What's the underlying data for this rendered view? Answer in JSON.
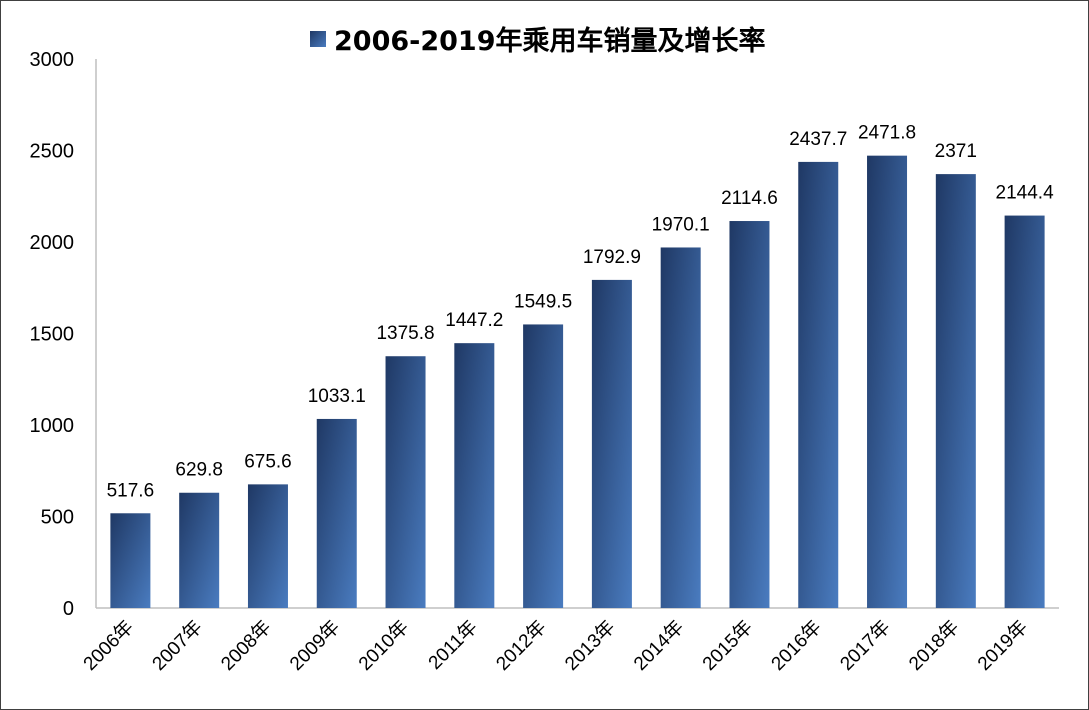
{
  "chart_data": {
    "type": "bar",
    "title": "2006-2019年乘用车销量及增长率",
    "categories": [
      "2006年",
      "2007年",
      "2008年",
      "2009年",
      "2010年",
      "2011年",
      "2012年",
      "2013年",
      "2014年",
      "2015年",
      "2016年",
      "2017年",
      "2018年",
      "2019年"
    ],
    "values": [
      517.6,
      629.8,
      675.6,
      1033.1,
      1375.8,
      1447.2,
      1549.5,
      1792.9,
      1970.1,
      2114.6,
      2437.7,
      2471.8,
      2371,
      2144.4
    ],
    "data_labels": [
      "517.6",
      "629.8",
      "675.6",
      "1033.1",
      "1375.8",
      "1447.2",
      "1549.5",
      "1792.9",
      "1970.1",
      "2114.6",
      "2437.7",
      "2471.8",
      "2371",
      "2144.4"
    ],
    "y_ticks": [
      "0",
      "500",
      "1000",
      "1500",
      "2000",
      "2500",
      "3000"
    ],
    "ylim": [
      0,
      3000
    ],
    "xlabel": "",
    "ylabel": "",
    "grid": false,
    "legend_position": "top",
    "colors": {
      "bar_dark": "#1F3864",
      "bar_light": "#4A7CC0",
      "axis": "#BFBFBF"
    }
  }
}
